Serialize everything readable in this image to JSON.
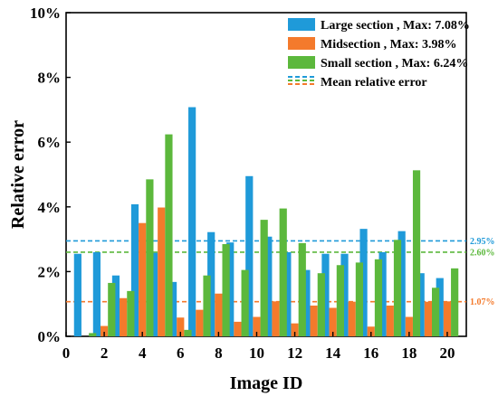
{
  "chart_data": {
    "type": "bar",
    "xlabel": "Image ID",
    "ylabel": "Relative error",
    "xlim": [
      0,
      21
    ],
    "ylim": [
      0,
      10
    ],
    "x_ticks": [
      0,
      2,
      4,
      6,
      8,
      10,
      12,
      14,
      16,
      18,
      20
    ],
    "y_ticks": [
      "0%",
      "2%",
      "4%",
      "6%",
      "8%",
      "10%"
    ],
    "categories": [
      1,
      2,
      3,
      4,
      5,
      6,
      7,
      8,
      9,
      10,
      11,
      12,
      13,
      14,
      15,
      16,
      17,
      18,
      19,
      20
    ],
    "series": [
      {
        "name": "Large section , Max: 7.08%",
        "color": "#1f9ad9",
        "values": [
          2.55,
          2.6,
          1.88,
          4.08,
          2.58,
          1.68,
          7.08,
          3.22,
          2.9,
          4.95,
          3.08,
          2.6,
          2.05,
          2.55,
          2.55,
          3.32,
          2.6,
          3.25,
          1.95,
          1.8
        ]
      },
      {
        "name": "Midsection , Max: 3.98%",
        "color": "#f47a2c",
        "values": [
          0.0,
          0.32,
          1.18,
          3.5,
          3.98,
          0.58,
          0.82,
          1.32,
          0.45,
          0.6,
          1.08,
          0.4,
          0.95,
          0.88,
          1.07,
          0.3,
          0.95,
          0.6,
          1.07,
          1.08
        ]
      },
      {
        "name": "Small section , Max: 6.24%",
        "color": "#5cb83c",
        "values": [
          0.1,
          1.65,
          1.4,
          4.85,
          6.24,
          0.2,
          1.88,
          2.85,
          2.05,
          3.6,
          3.95,
          2.88,
          1.95,
          2.2,
          2.28,
          2.38,
          2.98,
          5.13,
          1.5,
          2.1
        ]
      }
    ],
    "mean_lines": [
      {
        "label": "2.95%",
        "value": 2.95,
        "color": "#1f9ad9"
      },
      {
        "label": "2.60%",
        "value": 2.6,
        "color": "#5cb83c"
      },
      {
        "label": "1.07%",
        "value": 1.07,
        "color": "#f47a2c"
      }
    ],
    "legend": {
      "position": "top-right",
      "mean_entry_label": "Mean relative error"
    }
  }
}
